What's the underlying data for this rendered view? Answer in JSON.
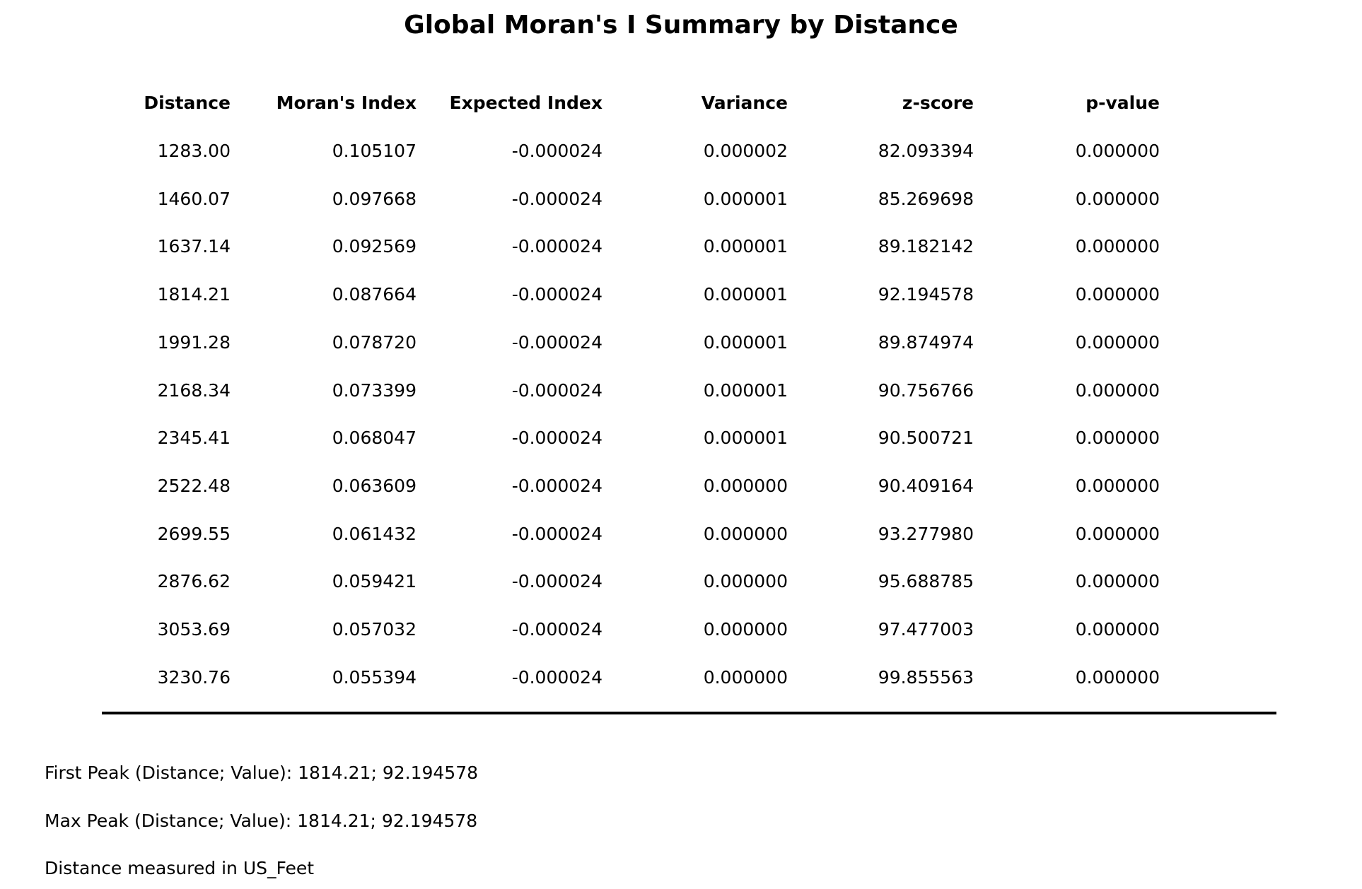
{
  "title": "Global Moran's I Summary by Distance",
  "table": {
    "columns": [
      "Distance",
      "Moran's Index",
      "Expected Index",
      "Variance",
      "z-score",
      "p-value"
    ],
    "rows": [
      [
        "1283.00",
        "0.105107",
        "-0.000024",
        "0.000002",
        "82.093394",
        "0.000000"
      ],
      [
        "1460.07",
        "0.097668",
        "-0.000024",
        "0.000001",
        "85.269698",
        "0.000000"
      ],
      [
        "1637.14",
        "0.092569",
        "-0.000024",
        "0.000001",
        "89.182142",
        "0.000000"
      ],
      [
        "1814.21",
        "0.087664",
        "-0.000024",
        "0.000001",
        "92.194578",
        "0.000000"
      ],
      [
        "1991.28",
        "0.078720",
        "-0.000024",
        "0.000001",
        "89.874974",
        "0.000000"
      ],
      [
        "2168.34",
        "0.073399",
        "-0.000024",
        "0.000001",
        "90.756766",
        "0.000000"
      ],
      [
        "2345.41",
        "0.068047",
        "-0.000024",
        "0.000001",
        "90.500721",
        "0.000000"
      ],
      [
        "2522.48",
        "0.063609",
        "-0.000024",
        "0.000000",
        "90.409164",
        "0.000000"
      ],
      [
        "2699.55",
        "0.061432",
        "-0.000024",
        "0.000000",
        "93.277980",
        "0.000000"
      ],
      [
        "2876.62",
        "0.059421",
        "-0.000024",
        "0.000000",
        "95.688785",
        "0.000000"
      ],
      [
        "3053.69",
        "0.057032",
        "-0.000024",
        "0.000000",
        "97.477003",
        "0.000000"
      ],
      [
        "3230.76",
        "0.055394",
        "-0.000024",
        "0.000000",
        "99.855563",
        "0.000000"
      ]
    ]
  },
  "footer": {
    "first_peak": "First Peak (Distance; Value): 1814.21; 92.194578",
    "max_peak": "Max Peak (Distance; Value): 1814.21; 92.194578",
    "units_note": "Distance measured in US_Feet"
  }
}
